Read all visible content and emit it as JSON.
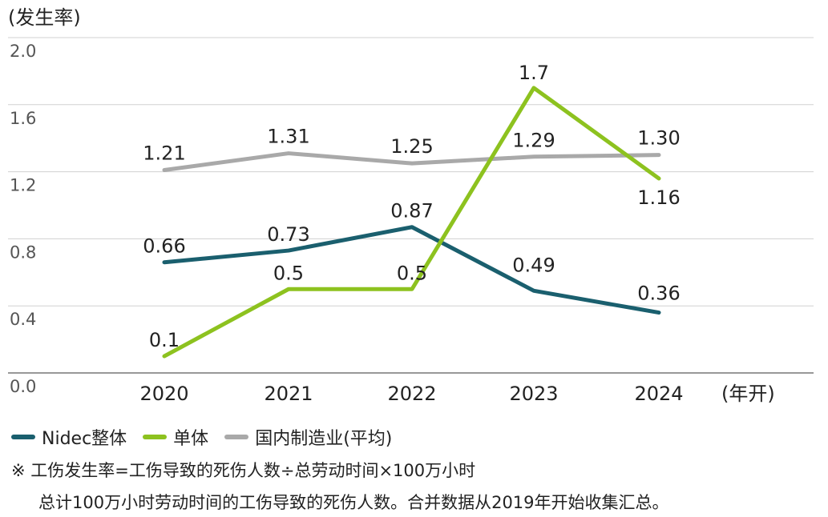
{
  "chart_data": {
    "type": "line",
    "ylabel": "(发生率)",
    "xlabel": "(年开)",
    "categories": [
      "2020",
      "2021",
      "2022",
      "2023",
      "2024"
    ],
    "yticks": [
      "2.0",
      "1.6",
      "1.2",
      "0.8",
      "0.4",
      "0.0"
    ],
    "ylim": [
      0,
      2.0
    ],
    "grid": true,
    "legend_position": "bottom-left",
    "series": [
      {
        "name": "Nidec整体",
        "color": "#1a5f6e",
        "values": [
          0.66,
          0.73,
          0.87,
          0.49,
          0.36
        ],
        "labels": [
          "0.66",
          "0.73",
          "0.87",
          "0.49",
          "0.36"
        ]
      },
      {
        "name": "单体",
        "color": "#8dc21f",
        "values": [
          0.1,
          0.5,
          0.5,
          1.7,
          1.16
        ],
        "labels": [
          "0.1",
          "0.5",
          "0.5",
          "1.7",
          "1.16"
        ]
      },
      {
        "name": "国内制造业(平均)",
        "color": "#a9a9a9",
        "values": [
          1.21,
          1.31,
          1.25,
          1.29,
          1.3
        ],
        "labels": [
          "1.21",
          "1.31",
          "1.25",
          "1.29",
          "1.30"
        ]
      }
    ]
  },
  "notes": {
    "line1": "※ 工伤发生率=工伤导致的死伤人数÷总劳动时间×100万小时",
    "line2": "总计100万小时劳动时间的工伤导致的死伤人数。合并数据从2019年开始收集汇总。"
  }
}
